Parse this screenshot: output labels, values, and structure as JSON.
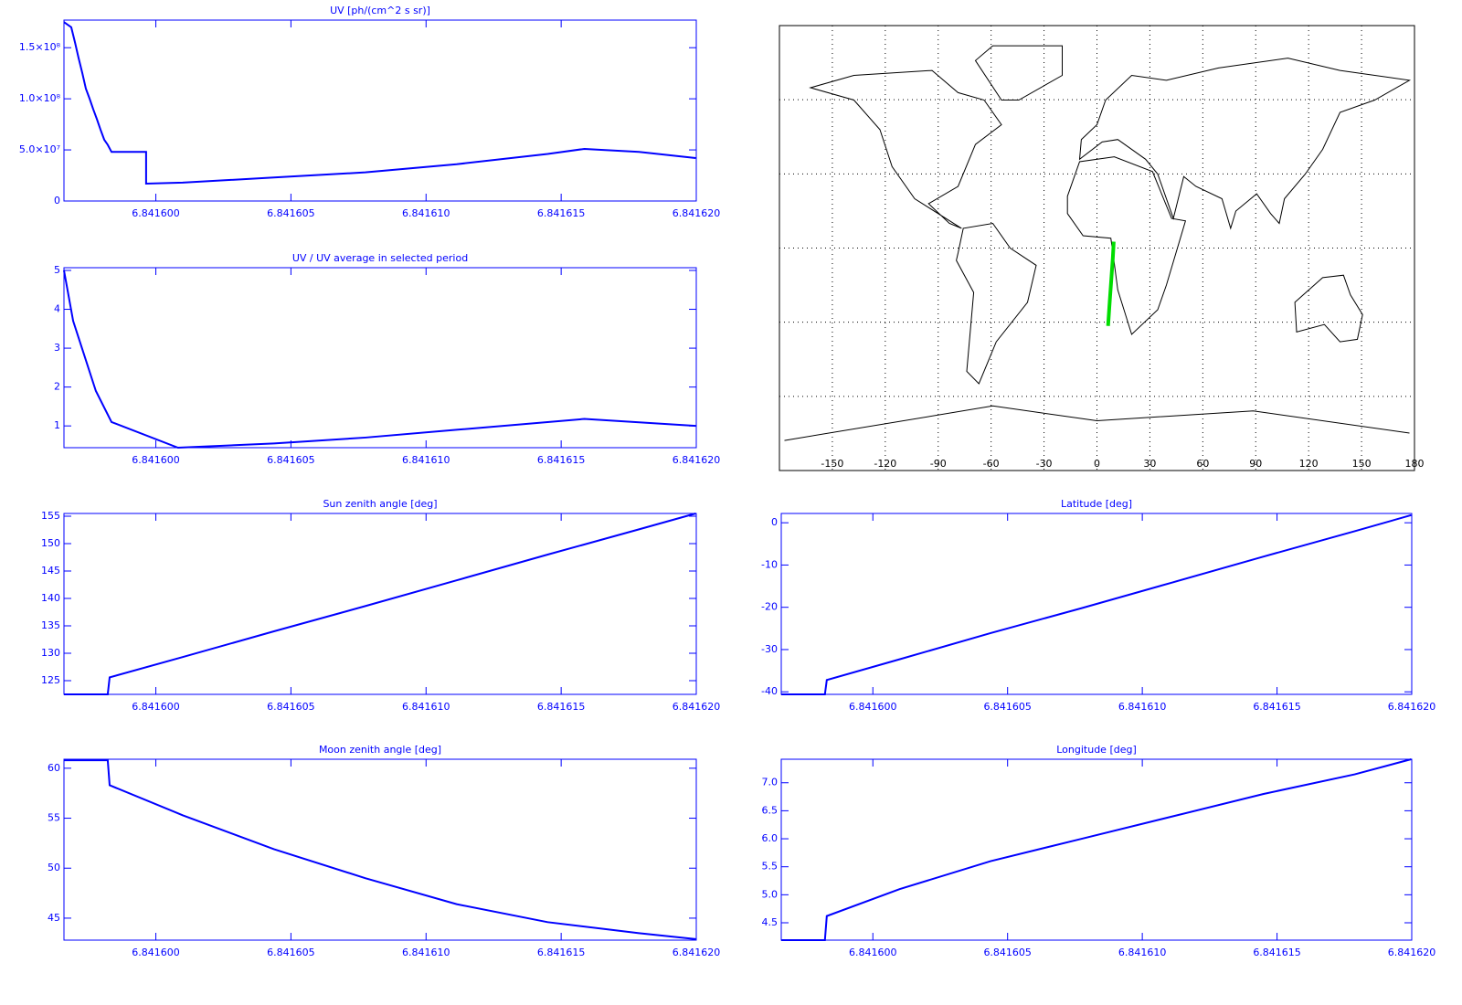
{
  "chart_data": [
    {
      "type": "line",
      "title": "UV [ph/(cm^2 s sr)]",
      "color": "#0000ff",
      "x": [
        6.8415966,
        6.84159687,
        6.84159701,
        6.84159714,
        6.84159728,
        6.84159741,
        6.84159755,
        6.84159768,
        6.84159782,
        6.84159795,
        6.84159809,
        6.84159822,
        6.84159836,
        6.84159964,
        6.84159964,
        6.84160099,
        6.84160437,
        6.84160775,
        6.84161113,
        6.8416145,
        6.84161586,
        6.84161788,
        6.84161998
      ],
      "values": [
        175000000,
        170000000,
        155000000,
        140000000,
        125000000,
        110000000,
        100000000,
        90000000,
        80000000,
        70000000,
        60000000,
        55000000,
        48000000,
        48000000,
        17000000,
        18000000,
        23000000,
        28000000,
        36000000,
        46000000,
        51000000,
        48000000,
        42000000
      ],
      "xlim": [
        6.8415966,
        6.84162
      ],
      "ylim": [
        0,
        177000000
      ],
      "xticks": [
        {
          "value": 6.8416,
          "label": "6.841600"
        },
        6.841605,
        {
          "value": 6.84161,
          "label": "6.841610"
        },
        6.841615,
        {
          "value": 6.84162,
          "label": "6.841620"
        }
      ],
      "yticks": [
        0,
        {
          "value": 50000000,
          "label": "5.0×10⁷"
        },
        {
          "value": 100000000,
          "label": "1.0×10⁸"
        },
        {
          "value": 150000000,
          "label": "1.5×10⁸"
        }
      ]
    },
    {
      "type": "line",
      "title": "UV / UV average in selected period",
      "color": "#0000ff",
      "x": [
        6.8415966,
        6.84159694,
        6.84159778,
        6.84159836,
        6.84160082,
        6.84160437,
        6.84160775,
        6.84161113,
        6.84161586,
        6.84161998
      ],
      "values": [
        5,
        3.7,
        1.9,
        1.1,
        0.44,
        0.55,
        0.7,
        0.9,
        1.18,
        1.0
      ],
      "xlim": [
        6.8415966,
        6.84162
      ],
      "ylim": [
        0.44,
        5.07
      ],
      "xticks": [
        {
          "value": 6.8416,
          "label": "6.841600"
        },
        6.841605,
        {
          "value": 6.84161,
          "label": "6.841610"
        },
        6.841615,
        {
          "value": 6.84162,
          "label": "6.841620"
        }
      ],
      "yticks": [
        1,
        2,
        3,
        4,
        5
      ]
    },
    {
      "type": "map",
      "color": "#00dd00",
      "x": [
        6.3,
        7.2,
        8.1,
        9.0,
        9.5
      ],
      "values": [
        -31.5,
        -22,
        -13,
        -4,
        2.6
      ],
      "xlim": [
        -180,
        180
      ],
      "ylim": [
        -90,
        90
      ],
      "xticks": [
        -150,
        -120,
        -90,
        -60,
        -30,
        0,
        30,
        60,
        90,
        120,
        150,
        180
      ],
      "ygrid": [
        -60,
        -30,
        0,
        30,
        60
      ]
    },
    {
      "type": "line",
      "title": "Sun zenith angle [deg]",
      "color": "#0000ff",
      "x": [
        6.8415966,
        6.84159822,
        6.84159829,
        6.84160099,
        6.84160437,
        6.84160775,
        6.84161113,
        6.8416145,
        6.84161788,
        6.84161998
      ],
      "values": [
        122.5,
        122.5,
        125.6,
        129.3,
        134.0,
        138.6,
        143.3,
        148.0,
        152.6,
        155.5
      ],
      "xlim": [
        6.8415966,
        6.84162
      ],
      "ylim": [
        122.5,
        155.5
      ],
      "xticks": [
        {
          "value": 6.8416,
          "label": "6.841600"
        },
        6.841605,
        {
          "value": 6.84161,
          "label": "6.841610"
        },
        6.841615,
        {
          "value": 6.84162,
          "label": "6.841620"
        }
      ],
      "yticks": [
        125,
        130,
        135,
        140,
        145,
        150,
        155
      ]
    },
    {
      "type": "line",
      "title": "Latitude [deg]",
      "color": "#0000ff",
      "x": [
        6.8415966,
        6.84159822,
        6.84159829,
        6.84160099,
        6.84160437,
        6.84160775,
        6.84161113,
        6.8416145,
        6.84161788,
        6.84161998
      ],
      "values": [
        -40.6,
        -40.6,
        -37.2,
        -32.3,
        -26.1,
        -20.2,
        -14.1,
        -8.0,
        -2.0,
        1.8
      ],
      "xlim": [
        6.8415966,
        6.84162
      ],
      "ylim": [
        -40.6,
        2.2
      ],
      "xticks": [
        {
          "value": 6.8416,
          "label": "6.841600"
        },
        6.841605,
        {
          "value": 6.84161,
          "label": "6.841610"
        },
        6.841615,
        {
          "value": 6.84162,
          "label": "6.841620"
        }
      ],
      "yticks": [
        0,
        -10,
        -20,
        -30,
        -40
      ]
    },
    {
      "type": "line",
      "title": "Moon zenith angle [deg]",
      "color": "#0000ff",
      "x": [
        6.8415966,
        6.84159822,
        6.84159829,
        6.84160099,
        6.84160437,
        6.84160775,
        6.84161113,
        6.8416145,
        6.84161788,
        6.84161998
      ],
      "values": [
        60.8,
        60.8,
        58.3,
        55.3,
        51.9,
        49.0,
        46.4,
        44.6,
        43.5,
        42.9
      ],
      "xlim": [
        6.8415966,
        6.84162
      ],
      "ylim": [
        42.8,
        60.9
      ],
      "xticks": [
        {
          "value": 6.8416,
          "label": "6.841600"
        },
        6.841605,
        {
          "value": 6.84161,
          "label": "6.841610"
        },
        6.841615,
        {
          "value": 6.84162,
          "label": "6.841620"
        }
      ],
      "yticks": [
        45,
        50,
        55,
        60
      ]
    },
    {
      "type": "line",
      "title": "Longitude [deg]",
      "color": "#0000ff",
      "x": [
        6.8415966,
        6.84159822,
        6.84159829,
        6.84160099,
        6.84160437,
        6.84160775,
        6.84161113,
        6.8416145,
        6.84161788,
        6.84161998
      ],
      "values": [
        4.19,
        4.19,
        4.62,
        5.1,
        5.6,
        6.0,
        6.4,
        6.8,
        7.15,
        7.42
      ],
      "xlim": [
        6.8415966,
        6.84162
      ],
      "ylim": [
        4.19,
        7.42
      ],
      "xticks": [
        {
          "value": 6.8416,
          "label": "6.841600"
        },
        6.841605,
        {
          "value": 6.84161,
          "label": "6.841610"
        },
        6.841615,
        {
          "value": 6.84162,
          "label": "6.841620"
        }
      ],
      "yticks": [
        4.5,
        {
          "value": 5,
          "label": "5.0"
        },
        5.5,
        {
          "value": 6,
          "label": "6.0"
        },
        6.5,
        {
          "value": 7,
          "label": "7.0"
        }
      ]
    }
  ]
}
